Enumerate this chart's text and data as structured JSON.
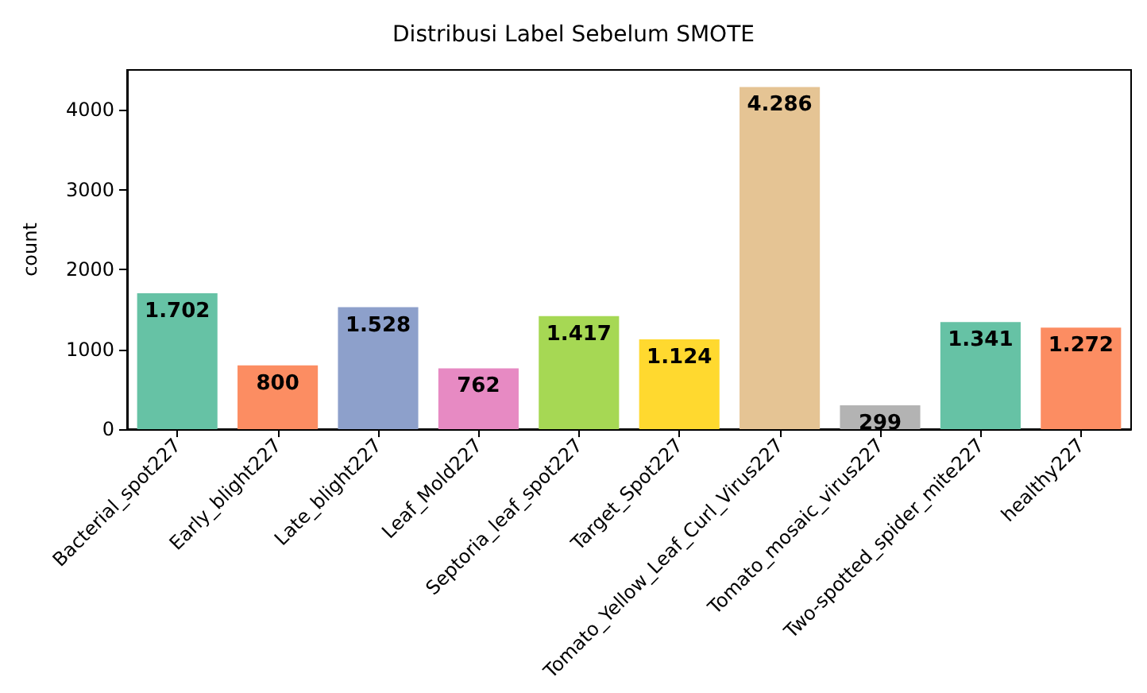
{
  "chart_data": {
    "type": "bar",
    "title": "Distribusi Label Sebelum SMOTE",
    "ylabel": "count",
    "categories": [
      "Bacterial_spot227",
      "Early_blight227",
      "Late_blight227",
      "Leaf_Mold227",
      "Septoria_leaf_spot227",
      "Target_Spot227",
      "Tomato_Yellow_Leaf_Curl_Virus227",
      "Tomato_mosaic_virus227",
      "Two-spotted_spider_mite227",
      "healthy227"
    ],
    "values": [
      1702,
      800,
      1528,
      762,
      1417,
      1124,
      4286,
      299,
      1341,
      1272
    ],
    "value_labels": [
      "1.702",
      "800",
      "1.528",
      "762",
      "1.417",
      "1.124",
      "4.286",
      "299",
      "1.341",
      "1.272"
    ],
    "colors": [
      "#66c2a5",
      "#fc8d62",
      "#8da0cb",
      "#e78ac3",
      "#a6d854",
      "#ffd92f",
      "#e5c494",
      "#b3b3b3",
      "#66c2a5",
      "#fc8d62"
    ],
    "ylim": [
      0,
      4500
    ],
    "yticks": [
      0,
      1000,
      2000,
      3000,
      4000
    ],
    "grid": false
  }
}
